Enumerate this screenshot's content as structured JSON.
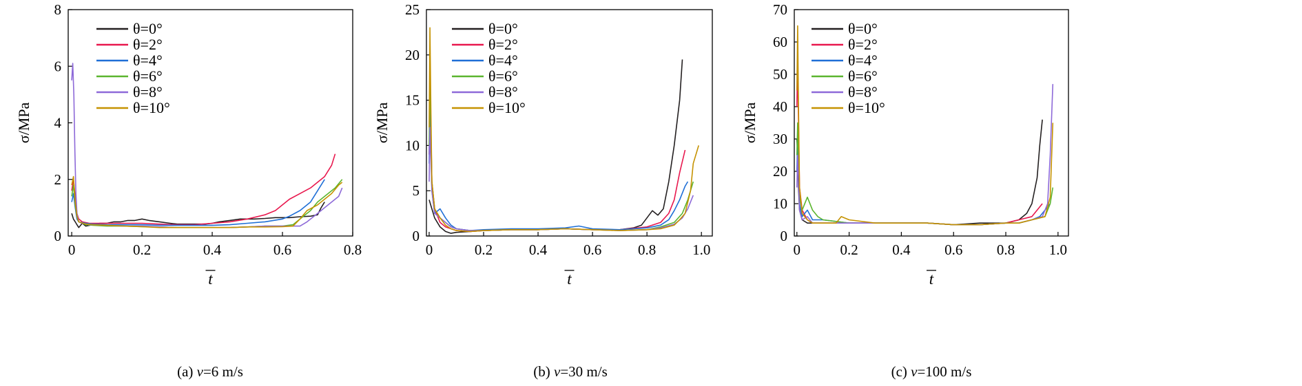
{
  "chart_data": [
    {
      "type": "line",
      "caption": "(a) v=6 m/s",
      "caption_parts": {
        "prefix": "(a) ",
        "var": "v",
        "rest": "=6 m/s"
      },
      "xlabel": "t",
      "xlabel_overline": true,
      "ylabel": "σ/MPa",
      "xlim": [
        -0.01,
        0.8
      ],
      "ylim": [
        0,
        8
      ],
      "xticks": [
        0,
        0.2,
        0.4,
        0.6,
        0.8
      ],
      "xtick_labels": [
        "0",
        "0.2",
        "0.4",
        "0.6",
        "0.8"
      ],
      "yticks": [
        0,
        2,
        4,
        6,
        8
      ],
      "ytick_labels": [
        "0",
        "2",
        "4",
        "6",
        "8"
      ],
      "legend": "top-left",
      "series": [
        {
          "name": "θ=0°",
          "color": "#231f20",
          "x": [
            0,
            0.005,
            0.01,
            0.015,
            0.02,
            0.03,
            0.04,
            0.06,
            0.08,
            0.1,
            0.12,
            0.14,
            0.16,
            0.18,
            0.2,
            0.22,
            0.25,
            0.28,
            0.3,
            0.33,
            0.36,
            0.38,
            0.4,
            0.42,
            0.45,
            0.48,
            0.5,
            0.52,
            0.55,
            0.58,
            0.6,
            0.62,
            0.65,
            0.68,
            0.7,
            0.71,
            0.72
          ],
          "y": [
            0.8,
            0.6,
            0.5,
            0.4,
            0.3,
            0.45,
            0.35,
            0.4,
            0.45,
            0.45,
            0.5,
            0.5,
            0.55,
            0.55,
            0.6,
            0.55,
            0.5,
            0.45,
            0.42,
            0.42,
            0.42,
            0.42,
            0.45,
            0.5,
            0.55,
            0.6,
            0.6,
            0.6,
            0.62,
            0.65,
            0.65,
            0.65,
            0.68,
            0.7,
            0.75,
            1.0,
            1.2
          ]
        },
        {
          "name": "θ=2°",
          "color": "#e8174d",
          "x": [
            0,
            0.005,
            0.01,
            0.015,
            0.02,
            0.03,
            0.05,
            0.08,
            0.1,
            0.15,
            0.2,
            0.25,
            0.3,
            0.35,
            0.4,
            0.45,
            0.5,
            0.55,
            0.58,
            0.6,
            0.62,
            0.65,
            0.68,
            0.7,
            0.72,
            0.74,
            0.75
          ],
          "y": [
            1.6,
            2.0,
            1.4,
            0.8,
            0.6,
            0.5,
            0.45,
            0.45,
            0.45,
            0.45,
            0.45,
            0.42,
            0.4,
            0.4,
            0.45,
            0.5,
            0.6,
            0.75,
            0.9,
            1.1,
            1.3,
            1.5,
            1.7,
            1.9,
            2.1,
            2.5,
            2.9
          ]
        },
        {
          "name": "θ=4°",
          "color": "#1f6fd6",
          "x": [
            0,
            0.005,
            0.01,
            0.015,
            0.02,
            0.04,
            0.06,
            0.1,
            0.15,
            0.2,
            0.25,
            0.3,
            0.35,
            0.4,
            0.45,
            0.5,
            0.55,
            0.6,
            0.62,
            0.65,
            0.68,
            0.7,
            0.72
          ],
          "y": [
            1.2,
            1.5,
            1.0,
            0.6,
            0.5,
            0.45,
            0.42,
            0.4,
            0.4,
            0.4,
            0.38,
            0.38,
            0.38,
            0.38,
            0.4,
            0.45,
            0.5,
            0.6,
            0.7,
            0.9,
            1.2,
            1.6,
            2.0
          ]
        },
        {
          "name": "θ=6°",
          "color": "#5ab52e",
          "x": [
            0,
            0.005,
            0.01,
            0.015,
            0.02,
            0.04,
            0.06,
            0.1,
            0.15,
            0.2,
            0.25,
            0.3,
            0.35,
            0.4,
            0.45,
            0.5,
            0.55,
            0.6,
            0.63,
            0.65,
            0.68,
            0.7,
            0.72,
            0.75,
            0.77
          ],
          "y": [
            1.4,
            1.8,
            1.1,
            0.7,
            0.5,
            0.4,
            0.38,
            0.35,
            0.35,
            0.33,
            0.32,
            0.3,
            0.3,
            0.3,
            0.3,
            0.32,
            0.35,
            0.35,
            0.4,
            0.6,
            0.9,
            1.2,
            1.4,
            1.7,
            2.0
          ]
        },
        {
          "name": "θ=8°",
          "color": "#8d69d8",
          "x": [
            0,
            0.003,
            0.006,
            0.009,
            0.012,
            0.015,
            0.02,
            0.03,
            0.05,
            0.1,
            0.15,
            0.2,
            0.25,
            0.3,
            0.35,
            0.4,
            0.45,
            0.5,
            0.55,
            0.6,
            0.63,
            0.65,
            0.67,
            0.7,
            0.72,
            0.74,
            0.76,
            0.77
          ],
          "y": [
            5.5,
            6.1,
            5.0,
            3.0,
            1.5,
            0.8,
            0.5,
            0.45,
            0.4,
            0.38,
            0.35,
            0.35,
            0.32,
            0.3,
            0.3,
            0.3,
            0.3,
            0.32,
            0.35,
            0.35,
            0.35,
            0.35,
            0.5,
            0.8,
            1.0,
            1.2,
            1.4,
            1.7
          ]
        },
        {
          "name": "θ=10°",
          "color": "#c59200",
          "x": [
            0,
            0.005,
            0.01,
            0.015,
            0.02,
            0.04,
            0.06,
            0.1,
            0.15,
            0.2,
            0.25,
            0.3,
            0.35,
            0.4,
            0.45,
            0.5,
            0.55,
            0.6,
            0.63,
            0.65,
            0.67,
            0.7,
            0.72,
            0.74,
            0.76,
            0.77
          ],
          "y": [
            1.8,
            2.1,
            1.2,
            0.7,
            0.5,
            0.42,
            0.4,
            0.38,
            0.35,
            0.33,
            0.3,
            0.3,
            0.3,
            0.3,
            0.3,
            0.32,
            0.32,
            0.33,
            0.35,
            0.6,
            0.9,
            1.1,
            1.3,
            1.5,
            1.8,
            1.9
          ]
        }
      ]
    },
    {
      "type": "line",
      "caption": "(b) v=30 m/s",
      "caption_parts": {
        "prefix": "(b) ",
        "var": "v",
        "rest": "=30 m/s"
      },
      "xlabel": "t",
      "xlabel_overline": true,
      "ylabel": "σ/MPa",
      "xlim": [
        -0.01,
        1.04
      ],
      "ylim": [
        0,
        25
      ],
      "xticks": [
        0,
        0.2,
        0.4,
        0.6,
        0.8,
        1.0
      ],
      "xtick_labels": [
        "0",
        "0.2",
        "0.4",
        "0.6",
        "0.8",
        "1.0"
      ],
      "yticks": [
        0,
        5,
        10,
        15,
        20,
        25
      ],
      "ytick_labels": [
        "0",
        "5",
        "10",
        "15",
        "20",
        "25"
      ],
      "legend": "top-left",
      "series": [
        {
          "name": "θ=0°",
          "color": "#231f20",
          "x": [
            0,
            0.005,
            0.01,
            0.02,
            0.04,
            0.06,
            0.08,
            0.1,
            0.15,
            0.2,
            0.3,
            0.4,
            0.5,
            0.6,
            0.7,
            0.75,
            0.78,
            0.8,
            0.82,
            0.84,
            0.86,
            0.88,
            0.9,
            0.92,
            0.93
          ],
          "y": [
            4,
            3.5,
            3,
            2,
            1,
            0.5,
            0.3,
            0.4,
            0.5,
            0.6,
            0.7,
            0.7,
            0.8,
            0.7,
            0.7,
            0.9,
            1.2,
            2,
            2.8,
            2.3,
            3,
            6,
            10,
            15,
            19.5
          ]
        },
        {
          "name": "θ=2°",
          "color": "#e8174d",
          "x": [
            0,
            0.003,
            0.006,
            0.01,
            0.02,
            0.04,
            0.06,
            0.08,
            0.1,
            0.15,
            0.2,
            0.3,
            0.4,
            0.5,
            0.6,
            0.7,
            0.8,
            0.85,
            0.88,
            0.9,
            0.92,
            0.94
          ],
          "y": [
            9,
            16,
            12,
            6,
            3,
            1.5,
            1,
            0.8,
            0.6,
            0.5,
            0.6,
            0.7,
            0.7,
            0.8,
            0.7,
            0.7,
            1,
            1.5,
            2.5,
            4,
            7,
            9.5
          ]
        },
        {
          "name": "θ=4°",
          "color": "#1f6fd6",
          "x": [
            0,
            0.003,
            0.006,
            0.01,
            0.02,
            0.04,
            0.06,
            0.08,
            0.1,
            0.15,
            0.2,
            0.3,
            0.4,
            0.5,
            0.55,
            0.6,
            0.7,
            0.8,
            0.85,
            0.88,
            0.9,
            0.92,
            0.94,
            0.95
          ],
          "y": [
            8,
            14,
            10,
            5,
            2.5,
            3,
            2,
            1.2,
            0.8,
            0.6,
            0.7,
            0.8,
            0.8,
            0.9,
            1.1,
            0.8,
            0.7,
            0.9,
            1.2,
            1.8,
            2.8,
            4,
            5.5,
            6
          ]
        },
        {
          "name": "θ=6°",
          "color": "#5ab52e",
          "x": [
            0,
            0.003,
            0.006,
            0.01,
            0.02,
            0.04,
            0.06,
            0.08,
            0.1,
            0.15,
            0.2,
            0.3,
            0.4,
            0.5,
            0.6,
            0.7,
            0.8,
            0.85,
            0.9,
            0.93,
            0.95,
            0.97
          ],
          "y": [
            10,
            18,
            13,
            6,
            3,
            2,
            1.5,
            1,
            0.8,
            0.6,
            0.6,
            0.7,
            0.7,
            0.8,
            0.7,
            0.6,
            0.7,
            1,
            1.5,
            2.5,
            4,
            6
          ]
        },
        {
          "name": "θ=8°",
          "color": "#8d69d8",
          "x": [
            0,
            0.003,
            0.006,
            0.01,
            0.02,
            0.04,
            0.06,
            0.08,
            0.1,
            0.15,
            0.2,
            0.3,
            0.4,
            0.5,
            0.6,
            0.7,
            0.8,
            0.85,
            0.9,
            0.93,
            0.95,
            0.97
          ],
          "y": [
            6,
            12,
            9,
            5,
            2.5,
            2,
            1.5,
            1,
            0.8,
            0.6,
            0.6,
            0.7,
            0.7,
            0.8,
            0.7,
            0.6,
            0.7,
            0.9,
            1.3,
            2,
            3,
            4.5
          ]
        },
        {
          "name": "θ=10°",
          "color": "#c59200",
          "x": [
            0,
            0.003,
            0.006,
            0.01,
            0.02,
            0.04,
            0.06,
            0.08,
            0.1,
            0.15,
            0.2,
            0.3,
            0.4,
            0.5,
            0.6,
            0.7,
            0.8,
            0.85,
            0.9,
            0.92,
            0.94,
            0.96,
            0.97,
            0.99
          ],
          "y": [
            12,
            23,
            15,
            6,
            3,
            2,
            1.2,
            0.8,
            0.6,
            0.5,
            0.6,
            0.7,
            0.7,
            0.8,
            0.7,
            0.6,
            0.7,
            0.8,
            1.2,
            1.8,
            2.5,
            5,
            8,
            10
          ]
        }
      ]
    },
    {
      "type": "line",
      "caption": "(c) v=100 m/s",
      "caption_parts": {
        "prefix": "(c) ",
        "var": "v",
        "rest": "=100 m/s"
      },
      "xlabel": "t",
      "xlabel_overline": true,
      "ylabel": "σ/MPa",
      "xlim": [
        -0.01,
        1.04
      ],
      "ylim": [
        0,
        70
      ],
      "xticks": [
        0,
        0.2,
        0.4,
        0.6,
        0.8,
        1.0
      ],
      "xtick_labels": [
        "0",
        "0.2",
        "0.4",
        "0.6",
        "0.8",
        "1.0"
      ],
      "yticks": [
        0,
        10,
        20,
        30,
        40,
        50,
        60,
        70
      ],
      "ytick_labels": [
        "0",
        "10",
        "20",
        "30",
        "40",
        "50",
        "60",
        "70"
      ],
      "legend": "top-right",
      "series": [
        {
          "name": "θ=0°",
          "color": "#231f20",
          "x": [
            0,
            0.003,
            0.006,
            0.01,
            0.02,
            0.04,
            0.06,
            0.1,
            0.2,
            0.3,
            0.4,
            0.5,
            0.6,
            0.7,
            0.8,
            0.85,
            0.88,
            0.9,
            0.92,
            0.93,
            0.94
          ],
          "y": [
            30,
            25,
            15,
            8,
            5,
            4,
            4,
            4,
            4,
            4,
            4,
            4,
            3.5,
            4,
            4,
            5,
            7,
            10,
            18,
            28,
            36
          ]
        },
        {
          "name": "θ=2°",
          "color": "#e8174d",
          "x": [
            0,
            0.003,
            0.006,
            0.01,
            0.02,
            0.04,
            0.06,
            0.1,
            0.2,
            0.3,
            0.4,
            0.5,
            0.6,
            0.7,
            0.8,
            0.85,
            0.9,
            0.92,
            0.94
          ],
          "y": [
            40,
            55,
            35,
            15,
            8,
            5,
            4,
            4,
            4,
            4,
            4,
            4,
            3.5,
            3.5,
            4,
            5,
            6,
            8,
            10
          ]
        },
        {
          "name": "θ=4°",
          "color": "#1f6fd6",
          "x": [
            0,
            0.003,
            0.006,
            0.01,
            0.02,
            0.04,
            0.06,
            0.1,
            0.2,
            0.3,
            0.4,
            0.5,
            0.6,
            0.7,
            0.8,
            0.85,
            0.9,
            0.93,
            0.95,
            0.97
          ],
          "y": [
            20,
            30,
            22,
            10,
            6,
            8,
            5,
            5,
            4,
            4,
            4,
            4,
            3.5,
            3.5,
            4,
            4,
            5,
            6,
            8,
            10
          ]
        },
        {
          "name": "θ=6°",
          "color": "#5ab52e",
          "x": [
            0,
            0.003,
            0.006,
            0.01,
            0.02,
            0.04,
            0.06,
            0.08,
            0.1,
            0.2,
            0.3,
            0.4,
            0.5,
            0.6,
            0.7,
            0.8,
            0.85,
            0.9,
            0.95,
            0.97,
            0.98
          ],
          "y": [
            25,
            35,
            25,
            12,
            8,
            12,
            8,
            6,
            5,
            4,
            4,
            4,
            4,
            3.5,
            3.5,
            4,
            4,
            5,
            6,
            10,
            15
          ]
        },
        {
          "name": "θ=8°",
          "color": "#8d69d8",
          "x": [
            0,
            0.003,
            0.006,
            0.01,
            0.02,
            0.04,
            0.06,
            0.1,
            0.2,
            0.3,
            0.4,
            0.5,
            0.6,
            0.7,
            0.8,
            0.85,
            0.9,
            0.94,
            0.96,
            0.97,
            0.98
          ],
          "y": [
            15,
            25,
            18,
            8,
            5,
            6,
            4,
            4,
            4,
            4,
            4,
            4,
            3.5,
            3.5,
            4,
            4,
            5,
            6,
            10,
            25,
            47
          ]
        },
        {
          "name": "θ=10°",
          "color": "#c59200",
          "x": [
            0,
            0.003,
            0.006,
            0.01,
            0.02,
            0.04,
            0.06,
            0.1,
            0.15,
            0.17,
            0.2,
            0.3,
            0.4,
            0.5,
            0.6,
            0.7,
            0.8,
            0.85,
            0.9,
            0.95,
            0.97,
            0.98
          ],
          "y": [
            45,
            65,
            40,
            15,
            7,
            5,
            4,
            4,
            4,
            6,
            5,
            4,
            4,
            4,
            3.5,
            3.5,
            4,
            4,
            5,
            6,
            12,
            35
          ]
        }
      ]
    }
  ]
}
